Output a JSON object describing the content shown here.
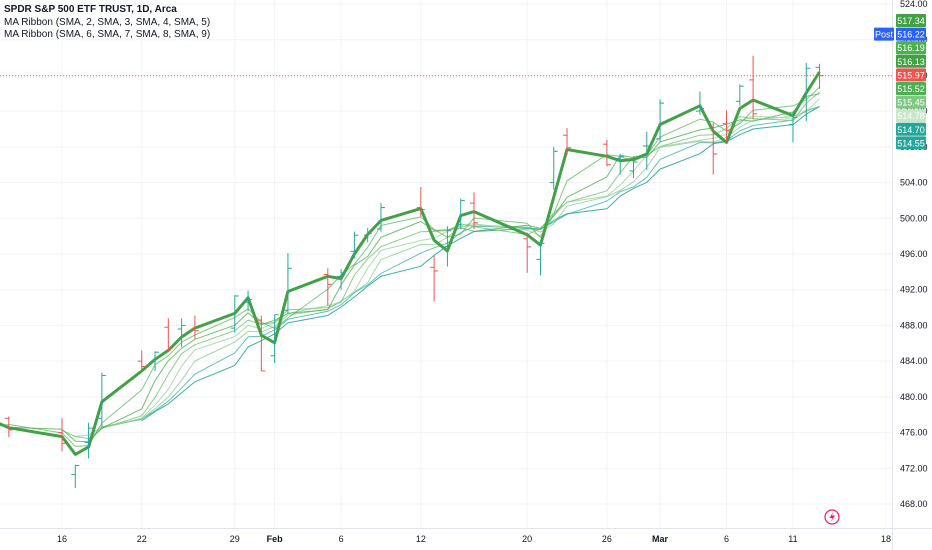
{
  "legend": {
    "title": "SPDR S&P 500 ETF TRUST, 1D, Arca",
    "ribbon1": "MA Ribbon (SMA, 2, SMA, 3, SMA, 4, SMA, 5)",
    "ribbon2": "MA Ribbon (SMA, 6, SMA, 7, SMA, 8, SMA, 9)"
  },
  "colors": {
    "up": "#26a69a",
    "down": "#ef5350",
    "ma_main": "#43a047",
    "ma_fast": "#4caf50",
    "ma_slow": "#26a69a",
    "grid": "#f0f3fa",
    "price_line": "#ef5350",
    "post_badge": "#2962ff"
  },
  "price_tags": [
    {
      "value": "517.34",
      "color": "#43a047",
      "text_color": "#ffffff"
    },
    {
      "value": "516.22",
      "color": "#2962ff",
      "text_color": "#ffffff",
      "label": "Post"
    },
    {
      "value": "516.19",
      "color": "#4caf50",
      "text_color": "#ffffff"
    },
    {
      "value": "516.13",
      "color": "#43a047",
      "text_color": "#ffffff"
    },
    {
      "value": "515.97",
      "color": "#ef5350",
      "text_color": "#ffffff"
    },
    {
      "value": "515.52",
      "color": "#4caf50",
      "text_color": "#ffffff"
    },
    {
      "value": "515.45",
      "color": "#81c784",
      "text_color": "#131722"
    },
    {
      "value": "514.78",
      "color": "#c8e6c9",
      "text_color": "#131722"
    },
    {
      "value": "514.70",
      "color": "#26a69a",
      "text_color": "#ffffff"
    },
    {
      "value": "514.55",
      "color": "#26a69a",
      "text_color": "#ffffff"
    }
  ],
  "chart_data": {
    "type": "candlestick",
    "title": "SPDR S&P 500 ETF TRUST, 1D, Arca",
    "ylim": [
      466,
      525
    ],
    "y_ticks": [
      468,
      472,
      476,
      480,
      484,
      488,
      492,
      496,
      500,
      504,
      508,
      512,
      516,
      520,
      524
    ],
    "y_tick_labels": [
      "468.00",
      "472.00",
      "476.00",
      "480.00",
      "484.00",
      "488.00",
      "492.00",
      "496.00",
      "500.00",
      "504.00",
      "508.00",
      "512.00",
      "516.00",
      "520.00",
      "524.00"
    ],
    "x_labels": [
      {
        "label": "16",
        "date": "2024-01-16"
      },
      {
        "label": "22",
        "date": "2024-01-22"
      },
      {
        "label": "29",
        "date": "2024-01-29"
      },
      {
        "label": "Feb",
        "date": "2024-02-01"
      },
      {
        "label": "6",
        "date": "2024-02-06"
      },
      {
        "label": "12",
        "date": "2024-02-12"
      },
      {
        "label": "20",
        "date": "2024-02-20"
      },
      {
        "label": "26",
        "date": "2024-02-26"
      },
      {
        "label": "Mar",
        "date": "2024-03-01"
      },
      {
        "label": "6",
        "date": "2024-03-06"
      },
      {
        "label": "11",
        "date": "2024-03-11"
      },
      {
        "label": "18",
        "date": "2024-03-18"
      }
    ],
    "bars": [
      {
        "date": "2024-01-09",
        "open": 474.0,
        "high": 477.0,
        "low": 472.6,
        "close": 475.7
      },
      {
        "date": "2024-01-10",
        "open": 475.7,
        "high": 478.0,
        "low": 474.8,
        "close": 477.6
      },
      {
        "date": "2024-01-11",
        "open": 478.5,
        "high": 478.5,
        "low": 472.8,
        "close": 476.8
      },
      {
        "date": "2024-01-12",
        "open": 477.6,
        "high": 477.8,
        "low": 475.5,
        "close": 476.3
      },
      {
        "date": "2024-01-16",
        "open": 476.0,
        "high": 477.6,
        "low": 473.9,
        "close": 474.8
      },
      {
        "date": "2024-01-17",
        "open": 471.3,
        "high": 472.4,
        "low": 469.8,
        "close": 472.3
      },
      {
        "date": "2024-01-18",
        "open": 474.9,
        "high": 477.1,
        "low": 473.1,
        "close": 476.5
      },
      {
        "date": "2024-01-19",
        "open": 477.6,
        "high": 482.7,
        "low": 476.5,
        "close": 482.4
      },
      {
        "date": "2024-01-22",
        "open": 484.0,
        "high": 485.2,
        "low": 482.8,
        "close": 483.4
      },
      {
        "date": "2024-01-23",
        "open": 484.0,
        "high": 485.1,
        "low": 482.9,
        "close": 485.0
      },
      {
        "date": "2024-01-24",
        "open": 487.8,
        "high": 488.8,
        "low": 485.0,
        "close": 485.4
      },
      {
        "date": "2024-01-25",
        "open": 487.6,
        "high": 488.8,
        "low": 485.6,
        "close": 488.0
      },
      {
        "date": "2024-01-26",
        "open": 487.6,
        "high": 489.1,
        "low": 486.5,
        "close": 487.4
      },
      {
        "date": "2024-01-29",
        "open": 487.7,
        "high": 491.4,
        "low": 487.2,
        "close": 491.3
      },
      {
        "date": "2024-01-30",
        "open": 490.6,
        "high": 491.9,
        "low": 489.6,
        "close": 490.9
      },
      {
        "date": "2024-01-31",
        "open": 488.6,
        "high": 489.1,
        "low": 482.9,
        "close": 482.9
      },
      {
        "date": "2024-02-01",
        "open": 484.6,
        "high": 489.2,
        "low": 483.8,
        "close": 489.2
      },
      {
        "date": "2024-02-02",
        "open": 489.7,
        "high": 496.1,
        "low": 489.3,
        "close": 494.4
      },
      {
        "date": "2024-02-05",
        "open": 493.7,
        "high": 494.4,
        "low": 490.2,
        "close": 492.6
      },
      {
        "date": "2024-02-06",
        "open": 493.5,
        "high": 494.3,
        "low": 492.0,
        "close": 493.9
      },
      {
        "date": "2024-02-07",
        "open": 496.3,
        "high": 498.5,
        "low": 495.5,
        "close": 498.1
      },
      {
        "date": "2024-02-08",
        "open": 498.1,
        "high": 498.9,
        "low": 497.3,
        "close": 498.3
      },
      {
        "date": "2024-02-09",
        "open": 498.8,
        "high": 501.7,
        "low": 498.5,
        "close": 501.2
      },
      {
        "date": "2024-02-12",
        "open": 501.2,
        "high": 503.5,
        "low": 500.2,
        "close": 500.98
      },
      {
        "date": "2024-02-13",
        "open": 494.5,
        "high": 495.8,
        "low": 490.7,
        "close": 494.1
      },
      {
        "date": "2024-02-14",
        "open": 496.8,
        "high": 499.1,
        "low": 494.6,
        "close": 498.6
      },
      {
        "date": "2024-02-15",
        "open": 499.3,
        "high": 502.2,
        "low": 498.8,
        "close": 502.0
      },
      {
        "date": "2024-02-16",
        "open": 501.7,
        "high": 502.9,
        "low": 498.8,
        "close": 499.5
      },
      {
        "date": "2024-02-20",
        "open": 497.7,
        "high": 498.4,
        "low": 493.9,
        "close": 496.8
      },
      {
        "date": "2024-02-21",
        "open": 495.4,
        "high": 497.4,
        "low": 493.6,
        "close": 497.2
      },
      {
        "date": "2024-02-22",
        "open": 504.0,
        "high": 508.0,
        "low": 503.2,
        "close": 507.5
      },
      {
        "date": "2024-02-23",
        "open": 509.3,
        "high": 510.1,
        "low": 507.1,
        "close": 507.9
      },
      {
        "date": "2024-02-26",
        "open": 508.3,
        "high": 508.8,
        "low": 505.8,
        "close": 505.99
      },
      {
        "date": "2024-02-27",
        "open": 506.7,
        "high": 507.2,
        "low": 504.9,
        "close": 506.9
      },
      {
        "date": "2024-02-28",
        "open": 505.3,
        "high": 506.9,
        "low": 504.5,
        "close": 506.3
      },
      {
        "date": "2024-02-29",
        "open": 508.1,
        "high": 509.7,
        "low": 505.4,
        "close": 508.1
      },
      {
        "date": "2024-03-01",
        "open": 508.9,
        "high": 513.3,
        "low": 508.6,
        "close": 512.9
      },
      {
        "date": "2024-03-04",
        "open": 512.0,
        "high": 514.2,
        "low": 511.6,
        "close": 512.3
      },
      {
        "date": "2024-03-05",
        "open": 510.2,
        "high": 510.7,
        "low": 504.9,
        "close": 507.2
      },
      {
        "date": "2024-03-06",
        "open": 510.6,
        "high": 512.1,
        "low": 508.6,
        "close": 509.8
      },
      {
        "date": "2024-03-07",
        "open": 513.1,
        "high": 515.0,
        "low": 512.6,
        "close": 514.8
      },
      {
        "date": "2024-03-08",
        "open": 515.5,
        "high": 518.2,
        "low": 511.1,
        "close": 511.7
      },
      {
        "date": "2024-03-11",
        "open": 510.5,
        "high": 511.9,
        "low": 508.5,
        "close": 511.3
      },
      {
        "date": "2024-03-12",
        "open": 513.5,
        "high": 517.4,
        "low": 510.9,
        "close": 516.8
      },
      {
        "date": "2024-03-13",
        "open": 516.9,
        "high": 517.3,
        "low": 514.5,
        "close": 515.97
      }
    ]
  }
}
